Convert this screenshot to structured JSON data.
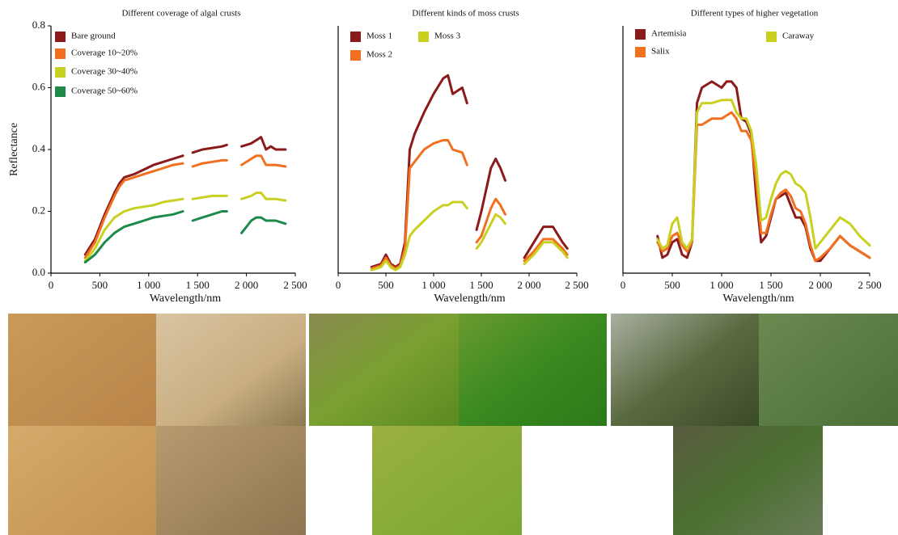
{
  "chart_data": [
    {
      "type": "line",
      "title": "Different coverage of algal crusts",
      "xlabel": "Wavelength/nm",
      "ylabel": "Reflectance",
      "x": [
        350,
        450,
        550,
        650,
        700,
        750,
        850,
        950,
        1050,
        1150,
        1250,
        1350,
        1400,
        1450,
        1550,
        1650,
        1750,
        1800,
        1850,
        1950,
        2050,
        2100,
        2150,
        2200,
        2250,
        2300,
        2400
      ],
      "xlim": [
        0,
        2500
      ],
      "ylim": [
        0,
        0.8
      ],
      "xticks": [
        0,
        500,
        {
          "value": 1000,
          "label": "1 000"
        },
        {
          "value": 1500,
          "label": "1 500"
        },
        {
          "value": 2000,
          "label": "2 000"
        },
        {
          "value": 2500,
          "label": "2 500"
        }
      ],
      "yticks": [
        {
          "value": 0,
          "label": "0.0"
        },
        0.2,
        0.4,
        0.6,
        0.8
      ],
      "series": [
        {
          "name": "Bare ground",
          "color": "#8b1a1a",
          "values": [
            0.06,
            0.11,
            0.19,
            0.26,
            0.29,
            0.31,
            0.32,
            0.335,
            0.35,
            0.36,
            0.37,
            0.38,
            null,
            0.39,
            0.4,
            0.405,
            0.41,
            0.415,
            null,
            0.41,
            0.42,
            0.43,
            0.44,
            0.4,
            0.41,
            0.4,
            0.4
          ]
        },
        {
          "name": "Coverage 10~20%",
          "color": "#f07020",
          "values": [
            0.05,
            0.1,
            0.18,
            0.25,
            0.28,
            0.3,
            0.31,
            0.32,
            0.33,
            0.34,
            0.35,
            0.355,
            null,
            0.345,
            0.355,
            0.36,
            0.365,
            0.365,
            null,
            0.35,
            0.37,
            0.38,
            0.38,
            0.35,
            0.35,
            0.35,
            0.345
          ]
        },
        {
          "name": "Coverage 30~40%",
          "color": "#c8d020",
          "values": [
            0.04,
            0.08,
            0.14,
            0.18,
            0.19,
            0.2,
            0.21,
            0.215,
            0.22,
            0.23,
            0.235,
            0.24,
            null,
            0.24,
            0.245,
            0.25,
            0.25,
            0.25,
            null,
            0.24,
            0.25,
            0.26,
            0.26,
            0.24,
            0.24,
            0.24,
            0.235
          ]
        },
        {
          "name": "Coverage 50~60%",
          "color": "#1e8a4a",
          "values": [
            0.035,
            0.06,
            0.1,
            0.13,
            0.14,
            0.15,
            0.16,
            0.17,
            0.18,
            0.185,
            0.19,
            0.2,
            null,
            0.17,
            0.18,
            0.19,
            0.2,
            0.2,
            null,
            0.13,
            0.17,
            0.18,
            0.18,
            0.17,
            0.17,
            0.17,
            0.16
          ]
        }
      ]
    },
    {
      "type": "line",
      "title": "Different kinds of moss crusts",
      "xlabel": "Wavelength/nm",
      "x": [
        350,
        450,
        500,
        550,
        600,
        650,
        700,
        750,
        800,
        900,
        1000,
        1100,
        1150,
        1200,
        1300,
        1350,
        1400,
        1450,
        1500,
        1600,
        1650,
        1700,
        1750,
        1850,
        1950,
        2050,
        2150,
        2250,
        2350,
        2400
      ],
      "xlim": [
        0,
        2500
      ],
      "ylim": [
        0,
        0.8
      ],
      "xticks": [
        0,
        500,
        {
          "value": 1000,
          "label": "1 000"
        },
        {
          "value": 1500,
          "label": "1 500"
        },
        {
          "value": 2000,
          "label": "2 000"
        },
        {
          "value": 2500,
          "label": "2 500"
        }
      ],
      "series": [
        {
          "name": "Moss 1",
          "color": "#8b1a1a",
          "values": [
            0.02,
            0.03,
            0.06,
            0.03,
            0.02,
            0.03,
            0.1,
            0.4,
            0.45,
            0.52,
            0.58,
            0.63,
            0.64,
            0.58,
            0.6,
            0.55,
            null,
            0.14,
            0.2,
            0.34,
            0.37,
            0.34,
            0.3,
            null,
            0.05,
            0.1,
            0.15,
            0.15,
            0.1,
            0.08
          ]
        },
        {
          "name": "Moss 2",
          "color": "#f07020",
          "values": [
            0.015,
            0.025,
            0.05,
            0.025,
            0.015,
            0.025,
            0.08,
            0.34,
            0.36,
            0.4,
            0.42,
            0.43,
            0.43,
            0.4,
            0.39,
            0.35,
            null,
            0.1,
            0.12,
            0.21,
            0.24,
            0.22,
            0.19,
            null,
            0.04,
            0.07,
            0.11,
            0.11,
            0.08,
            0.06
          ]
        },
        {
          "name": "Moss 3",
          "color": "#c8d020",
          "values": [
            0.01,
            0.02,
            0.04,
            0.02,
            0.01,
            0.02,
            0.06,
            0.12,
            0.14,
            0.17,
            0.2,
            0.22,
            0.22,
            0.23,
            0.23,
            0.21,
            null,
            0.08,
            0.1,
            0.16,
            0.19,
            0.18,
            0.16,
            null,
            0.03,
            0.06,
            0.1,
            0.1,
            0.07,
            0.05
          ]
        }
      ]
    },
    {
      "type": "line",
      "title": "Different types of higher vegetation",
      "xlabel": "Wavelength/nm",
      "x": [
        350,
        400,
        450,
        500,
        550,
        600,
        650,
        700,
        750,
        800,
        900,
        1000,
        1050,
        1100,
        1150,
        1200,
        1250,
        1300,
        1350,
        1400,
        1450,
        1500,
        1550,
        1600,
        1650,
        1700,
        1750,
        1800,
        1850,
        1900,
        1950,
        2000,
        2100,
        2200,
        2300,
        2400,
        2500
      ],
      "xlim": [
        0,
        2500
      ],
      "ylim": [
        0,
        0.8
      ],
      "xticks": [
        0,
        500,
        {
          "value": 1000,
          "label": "1 000"
        },
        {
          "value": 1500,
          "label": "1 500"
        },
        {
          "value": 2000,
          "label": "2 000"
        },
        {
          "value": 2500,
          "label": "2 500"
        }
      ],
      "series": [
        {
          "name": "Artemisia",
          "color": "#8b1a1a",
          "values": [
            0.12,
            0.05,
            0.06,
            0.1,
            0.11,
            0.06,
            0.05,
            0.1,
            0.55,
            0.6,
            0.62,
            0.6,
            0.62,
            0.62,
            0.6,
            0.5,
            0.49,
            0.45,
            0.25,
            0.1,
            0.12,
            0.18,
            0.24,
            0.25,
            0.26,
            0.22,
            0.18,
            0.18,
            0.15,
            0.08,
            0.04,
            0.04,
            0.08,
            0.12,
            0.09,
            0.07,
            0.05
          ]
        },
        {
          "name": "Salix",
          "color": "#f07020",
          "values": [
            0.1,
            0.07,
            0.08,
            0.12,
            0.13,
            0.09,
            0.07,
            0.1,
            0.48,
            0.48,
            0.5,
            0.5,
            0.51,
            0.52,
            0.5,
            0.46,
            0.46,
            0.43,
            0.3,
            0.13,
            0.13,
            0.19,
            0.24,
            0.26,
            0.27,
            0.25,
            0.21,
            0.2,
            0.16,
            0.09,
            0.04,
            0.05,
            0.08,
            0.12,
            0.09,
            0.07,
            0.05
          ]
        },
        {
          "name": "Caraway",
          "color": "#c8d020",
          "values": [
            0.11,
            0.08,
            0.09,
            0.16,
            0.18,
            0.1,
            0.08,
            0.11,
            0.52,
            0.55,
            0.55,
            0.56,
            0.56,
            0.56,
            0.52,
            0.5,
            0.5,
            0.46,
            0.35,
            0.17,
            0.18,
            0.24,
            0.29,
            0.32,
            0.33,
            0.32,
            0.29,
            0.28,
            0.26,
            0.18,
            0.08,
            0.1,
            0.14,
            0.18,
            0.16,
            0.12,
            0.09
          ]
        }
      ]
    }
  ]
}
